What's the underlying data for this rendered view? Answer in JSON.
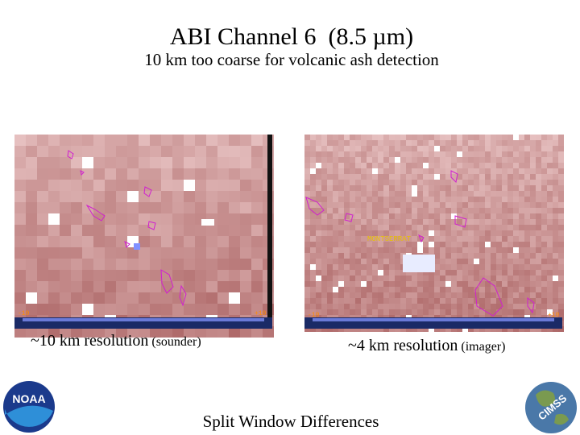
{
  "title": "ABI Channel 6  (8.5 µm)",
  "subtitle": "10 km too coarse for volcanic ash detection",
  "panels": [
    {
      "caption": "~10 km resolution",
      "caption_note": "(sounder)",
      "scale_min": "-10",
      "scale_max": "+10"
    },
    {
      "caption": "~4 km resolution",
      "caption_note": "(imager)",
      "scale_min": "-10",
      "scale_max": "+10",
      "place_label": "MONTSERRAT"
    }
  ],
  "footer": "Split Window Differences",
  "logos": {
    "left": "NOAA",
    "right": "CIMSS"
  }
}
